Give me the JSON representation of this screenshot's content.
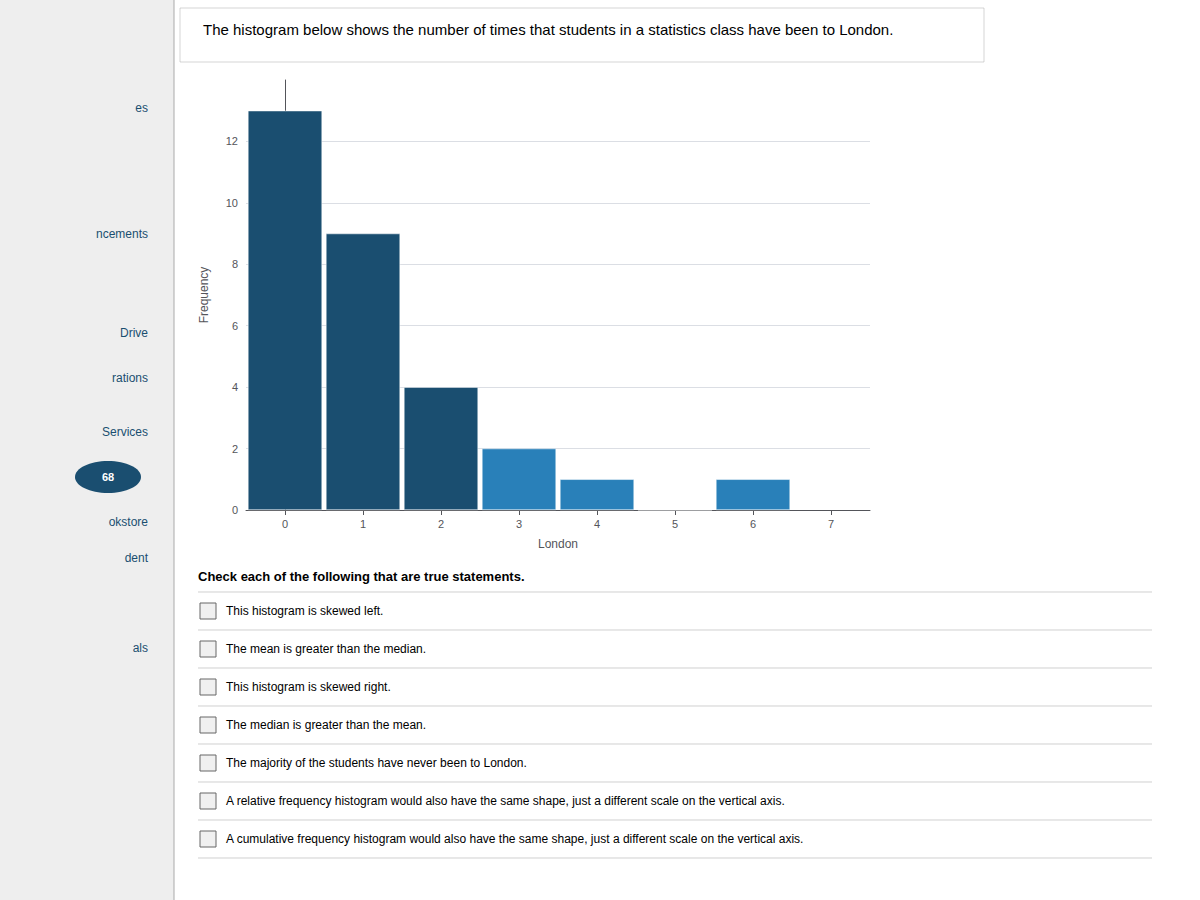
{
  "chart_data": {
    "type": "bar",
    "title": "The histogram below shows the number of times that students in a statistics class have been to London.",
    "xlabel": "London",
    "ylabel": "Frequency",
    "x": [
      0,
      1,
      2,
      3,
      4,
      5,
      6
    ],
    "values": [
      13,
      9,
      4,
      2,
      1,
      0,
      1
    ],
    "colors": [
      "#1a4e70",
      "#1a4e70",
      "#1a4e70",
      "#2980b9",
      "#2980b9",
      "#2980b9",
      "#2980b9"
    ],
    "xlim": [
      -0.5,
      7.5
    ],
    "xticks": [
      0,
      1,
      2,
      3,
      4,
      5,
      6,
      7
    ],
    "ylim": [
      0,
      14
    ],
    "yticks": [
      0,
      2,
      4,
      6,
      8,
      10,
      12
    ],
    "grid": true,
    "annotations": [
      "es",
      "ncements",
      "Drive",
      "rations",
      "Services",
      "okstore",
      "dent",
      "als",
      "68",
      "Check each of the following that are true statements.",
      "This histogram is skewed left.",
      "The mean is greater than the median.",
      "This histogram is skewed right.",
      "The median is greater than the mean.",
      "The majority of the students have never been to London.",
      "A relative frequency histogram would also have the same shape, just a different scale on the vertical axis.",
      "A cumulative frequency histogram would also have the same shape, just a different scale on the vertical axis."
    ]
  }
}
